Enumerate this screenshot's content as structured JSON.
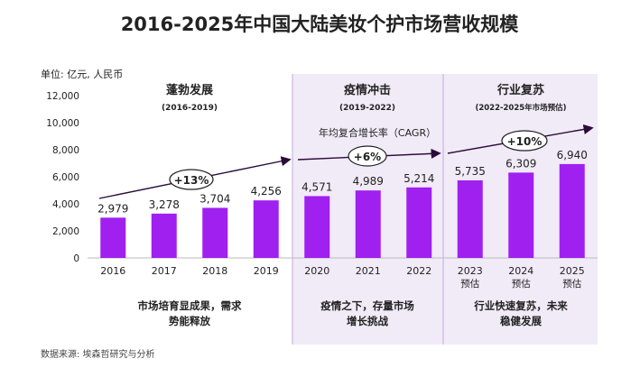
{
  "title": "2016-2025年中国大陆美妆个护市场营收规模",
  "unit_label": "单位: 亿元, 人民币",
  "source": "数据来源: 埃森哲研究与分析",
  "cagr_label": "年均复合增长率（CAGR）",
  "colors": {
    "bar": "#a020f0",
    "phase_bg": "#f1eaf7",
    "phase_line": "#c7a9dc",
    "trend_arrow": "#2a0b3a",
    "text": "#222222",
    "grid": "#e5e5e5"
  },
  "phases": [
    {
      "title": "蓬勃发展",
      "subtitle": "(2016-2019)",
      "cagr": "+13%",
      "caption_line1": "市场培育显成果，需求",
      "caption_line2": "势能释放",
      "shaded": false
    },
    {
      "title": "疫情冲击",
      "subtitle": "(2019-2022)",
      "cagr": "+6%",
      "caption_line1": "疫情之下，存量市场",
      "caption_line2": "增长挑战",
      "shaded": true
    },
    {
      "title": "行业复苏",
      "subtitle": "(2022-2025年市场预估)",
      "cagr": "+10%",
      "caption_line1": "行业快速复苏，未来",
      "caption_line2": "稳健发展",
      "shaded": true
    }
  ],
  "chart_data": {
    "type": "bar",
    "categories": [
      "2016",
      "2017",
      "2018",
      "2019",
      "2020",
      "2021",
      "2022",
      "2023",
      "2024",
      "2025"
    ],
    "category_sublabels": [
      "",
      "",
      "",
      "",
      "",
      "",
      "",
      "预估",
      "预估",
      "预估"
    ],
    "values": [
      2979,
      3278,
      3704,
      4256,
      4571,
      4989,
      5214,
      5735,
      6309,
      6940
    ],
    "value_labels": [
      "2,979",
      "3,278",
      "3,704",
      "4,256",
      "4,571",
      "4,989",
      "5,214",
      "5,735",
      "6,309",
      "6,940"
    ],
    "yticks": [
      "0",
      "2,000",
      "4,000",
      "6,000",
      "8,000",
      "10,000",
      "12,000"
    ],
    "ylim": [
      0,
      12000
    ],
    "grid": false,
    "legend": "none"
  }
}
